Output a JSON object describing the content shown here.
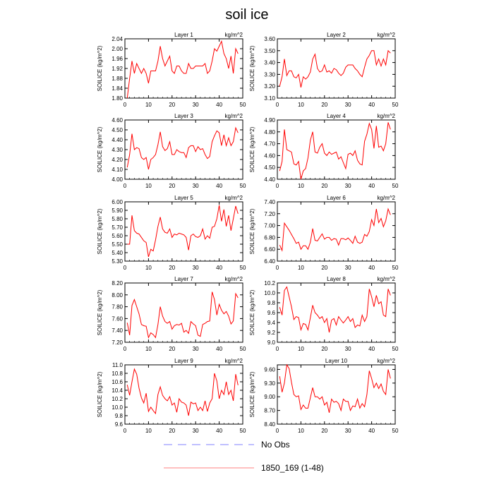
{
  "title": "soil ice",
  "legend": [
    {
      "label": "No Obs",
      "color": "#8080ff",
      "dash": true
    },
    {
      "label": "1850_169 (1-48)",
      "color": "#ff8080",
      "dash": false
    }
  ],
  "chart_data": [
    {
      "type": "line",
      "title": "Layer 1",
      "unit": "kg/m^2",
      "ylabel": "SOILICE  (kg/m^2)",
      "xlim": [
        0,
        50
      ],
      "ylim": [
        1.8,
        2.04
      ],
      "xticks": [
        0,
        10,
        20,
        30,
        40,
        50
      ],
      "yticks": [
        "1.80",
        "1.84",
        "1.88",
        "1.92",
        "1.96",
        "2.00",
        "2.04"
      ],
      "series": [
        {
          "color": "#ff0000",
          "values": [
            1.8,
            1.88,
            1.95,
            1.9,
            1.94,
            1.92,
            1.9,
            1.92,
            1.9,
            1.86,
            1.91,
            1.91,
            1.91,
            1.95,
            2.01,
            1.96,
            1.93,
            1.95,
            1.97,
            1.91,
            1.9,
            1.93,
            1.93,
            1.91,
            1.9,
            1.9,
            1.94,
            1.92,
            1.92,
            1.93,
            1.93,
            1.93,
            1.93,
            1.94,
            1.9,
            1.91,
            1.95,
            2.0,
            1.99,
            2.01,
            2.03,
            1.98,
            1.96,
            1.92,
            1.97,
            1.9,
            2.0,
            1.98
          ]
        }
      ]
    },
    {
      "type": "line",
      "title": "Layer 2",
      "unit": "kg/m^2",
      "ylabel": "SOILICE  (kg/m^2)",
      "xlim": [
        0,
        50
      ],
      "ylim": [
        3.1,
        3.6
      ],
      "xticks": [
        0,
        10,
        20,
        30,
        40,
        50
      ],
      "yticks": [
        "3.10",
        "3.20",
        "3.30",
        "3.40",
        "3.50",
        "3.60"
      ],
      "series": [
        {
          "color": "#ff0000",
          "values": [
            3.2,
            3.28,
            3.43,
            3.29,
            3.33,
            3.33,
            3.28,
            3.27,
            3.3,
            3.19,
            3.28,
            3.26,
            3.28,
            3.32,
            3.43,
            3.47,
            3.35,
            3.32,
            3.33,
            3.38,
            3.32,
            3.33,
            3.31,
            3.35,
            3.34,
            3.31,
            3.29,
            3.31,
            3.36,
            3.38,
            3.38,
            3.38,
            3.35,
            3.33,
            3.3,
            3.28,
            3.36,
            3.43,
            3.46,
            3.5,
            3.5,
            3.38,
            3.43,
            3.37,
            3.43,
            3.38,
            3.5,
            3.48
          ]
        }
      ]
    },
    {
      "type": "line",
      "title": "Layer 3",
      "unit": "kg/m^2",
      "ylabel": "SOILICE  (kg/m^2)",
      "xlim": [
        0,
        50
      ],
      "ylim": [
        4.0,
        4.6
      ],
      "xticks": [
        0,
        10,
        20,
        30,
        40,
        50
      ],
      "yticks": [
        "4.00",
        "4.10",
        "4.20",
        "4.30",
        "4.40",
        "4.50",
        "4.60"
      ],
      "series": [
        {
          "color": "#ff0000",
          "values": [
            4.12,
            4.25,
            4.46,
            4.3,
            4.32,
            4.31,
            4.22,
            4.2,
            4.22,
            4.1,
            4.2,
            4.22,
            4.25,
            4.35,
            4.48,
            4.33,
            4.29,
            4.31,
            4.38,
            4.25,
            4.25,
            4.3,
            4.28,
            4.27,
            4.27,
            4.22,
            4.32,
            4.34,
            4.34,
            4.28,
            4.33,
            4.3,
            4.31,
            4.25,
            4.21,
            4.23,
            4.38,
            4.44,
            4.49,
            4.47,
            4.34,
            4.45,
            4.34,
            4.42,
            4.34,
            4.38,
            4.52,
            4.47
          ]
        }
      ]
    },
    {
      "type": "line",
      "title": "Layer 4",
      "unit": "kg/m^2",
      "ylabel": "SOILICE  (kg/m^2)",
      "xlim": [
        0,
        50
      ],
      "ylim": [
        4.4,
        4.9
      ],
      "xticks": [
        0,
        10,
        20,
        30,
        40,
        50
      ],
      "yticks": [
        "4.40",
        "4.50",
        "4.60",
        "4.70",
        "4.80",
        "4.90"
      ],
      "series": [
        {
          "color": "#ff0000",
          "values": [
            4.47,
            4.55,
            4.82,
            4.65,
            4.64,
            4.63,
            4.53,
            4.52,
            4.55,
            4.4,
            4.47,
            4.49,
            4.58,
            4.73,
            4.8,
            4.63,
            4.62,
            4.67,
            4.7,
            4.62,
            4.6,
            4.63,
            4.61,
            4.62,
            4.63,
            4.57,
            4.59,
            4.54,
            4.49,
            4.61,
            4.62,
            4.6,
            4.64,
            4.56,
            4.53,
            4.52,
            4.72,
            4.78,
            4.87,
            4.82,
            4.66,
            4.85,
            4.67,
            4.68,
            4.64,
            4.7,
            4.88,
            4.82
          ]
        }
      ]
    },
    {
      "type": "line",
      "title": "Layer 5",
      "unit": "kg/m^2",
      "ylabel": "SOILICE  (kg/m^2)",
      "xlim": [
        0,
        50
      ],
      "ylim": [
        5.3,
        6.0
      ],
      "xticks": [
        0,
        10,
        20,
        30,
        40,
        50
      ],
      "yticks": [
        "5.30",
        "5.40",
        "5.50",
        "5.60",
        "5.70",
        "5.80",
        "5.90",
        "6.00"
      ],
      "series": [
        {
          "color": "#ff0000",
          "values": [
            5.5,
            5.5,
            5.84,
            5.66,
            5.63,
            5.62,
            5.58,
            5.54,
            5.52,
            5.35,
            5.44,
            5.42,
            5.55,
            5.71,
            5.82,
            5.68,
            5.64,
            5.63,
            5.68,
            5.58,
            5.62,
            5.61,
            5.63,
            5.62,
            5.61,
            5.58,
            5.43,
            5.6,
            5.62,
            5.59,
            5.58,
            5.6,
            5.68,
            5.56,
            5.6,
            5.57,
            5.7,
            5.71,
            5.8,
            5.96,
            5.77,
            5.91,
            5.71,
            5.84,
            5.66,
            5.8,
            5.95,
            5.86
          ]
        }
      ]
    },
    {
      "type": "line",
      "title": "Layer 6",
      "unit": "kg/m^2",
      "ylabel": "SOILICE  (kg/m^2)",
      "xlim": [
        0,
        50
      ],
      "ylim": [
        6.4,
        7.4
      ],
      "xticks": [
        0,
        10,
        20,
        30,
        40,
        50
      ],
      "yticks": [
        "6.40",
        "6.60",
        "6.80",
        "7.00",
        "7.20",
        "7.40"
      ],
      "series": [
        {
          "color": "#ff0000",
          "values": [
            6.67,
            6.58,
            7.04,
            6.98,
            6.92,
            6.85,
            6.78,
            6.7,
            6.72,
            6.6,
            6.66,
            6.66,
            6.6,
            6.72,
            6.95,
            6.75,
            6.74,
            6.8,
            6.86,
            6.77,
            6.8,
            6.8,
            6.75,
            6.78,
            6.77,
            6.67,
            6.78,
            6.78,
            6.76,
            6.79,
            6.75,
            6.7,
            6.82,
            6.72,
            6.7,
            6.72,
            6.85,
            6.82,
            6.9,
            7.1,
            7.0,
            7.28,
            7.05,
            7.12,
            6.98,
            7.08,
            7.28,
            7.18
          ]
        }
      ]
    },
    {
      "type": "line",
      "title": "Layer 7",
      "unit": "kg/m^2",
      "ylabel": "SOILICE  (kg/m^2)",
      "xlim": [
        0,
        50
      ],
      "ylim": [
        7.2,
        8.2
      ],
      "xticks": [
        0,
        10,
        20,
        30,
        40,
        50
      ],
      "yticks": [
        "7.20",
        "7.40",
        "7.60",
        "7.80",
        "8.00",
        "8.20"
      ],
      "series": [
        {
          "color": "#ff0000",
          "values": [
            7.53,
            7.32,
            7.82,
            7.92,
            7.8,
            7.68,
            7.5,
            7.48,
            7.47,
            7.28,
            7.36,
            7.33,
            7.28,
            7.5,
            7.8,
            7.64,
            7.55,
            7.52,
            7.55,
            7.42,
            7.48,
            7.5,
            7.49,
            7.52,
            7.37,
            7.4,
            7.35,
            7.55,
            7.51,
            7.48,
            7.32,
            7.3,
            7.5,
            7.52,
            7.55,
            7.56,
            8.05,
            7.92,
            7.66,
            7.84,
            7.74,
            7.68,
            7.72,
            7.64,
            7.51,
            7.56,
            8.02,
            7.95
          ]
        }
      ]
    },
    {
      "type": "line",
      "title": "Layer 8",
      "unit": "kg/m^2",
      "ylabel": "SOILICE  (kg/m^2)",
      "xlim": [
        0,
        50
      ],
      "ylim": [
        9.0,
        10.2
      ],
      "xticks": [
        0,
        10,
        20,
        30,
        40,
        50
      ],
      "yticks": [
        "9.0",
        "9.2",
        "9.4",
        "9.6",
        "9.8",
        "10.0",
        "10.2"
      ],
      "series": [
        {
          "color": "#ff0000",
          "values": [
            9.71,
            9.55,
            10.05,
            10.12,
            9.92,
            9.72,
            9.46,
            9.52,
            9.5,
            9.25,
            9.38,
            9.36,
            9.25,
            9.5,
            9.75,
            9.6,
            9.55,
            9.48,
            9.52,
            9.4,
            9.48,
            9.2,
            9.45,
            9.48,
            9.35,
            9.52,
            9.45,
            9.39,
            9.45,
            9.52,
            9.42,
            9.48,
            9.3,
            9.35,
            9.33,
            9.55,
            9.42,
            9.52,
            10.08,
            9.92,
            9.72,
            9.95,
            9.78,
            9.82,
            9.55,
            9.52,
            10.08,
            9.95
          ]
        }
      ]
    },
    {
      "type": "line",
      "title": "Layer 9",
      "unit": "kg/m^2",
      "ylabel": "SOILICE  (kg/m^2)",
      "xlim": [
        0,
        50
      ],
      "ylim": [
        9.6,
        11.0
      ],
      "xticks": [
        0,
        10,
        20,
        30,
        40,
        50
      ],
      "yticks": [
        "9.6",
        "9.8",
        "10.0",
        "10.2",
        "10.4",
        "10.6",
        "10.8",
        "11.0"
      ],
      "series": [
        {
          "color": "#ff0000",
          "values": [
            10.53,
            10.28,
            10.6,
            10.9,
            10.78,
            10.45,
            10.22,
            10.1,
            10.33,
            9.9,
            10.0,
            9.92,
            9.85,
            10.3,
            10.48,
            10.28,
            10.2,
            10.15,
            10.25,
            10.05,
            10.1,
            9.88,
            10.2,
            10.12,
            10.1,
            10.05,
            9.8,
            10.12,
            10.08,
            10.1,
            9.92,
            10.0,
            9.92,
            10.15,
            9.9,
            10.1,
            10.2,
            10.8,
            10.62,
            10.2,
            10.4,
            10.3,
            10.6,
            10.3,
            10.4,
            10.15,
            10.78,
            10.52
          ]
        }
      ]
    },
    {
      "type": "line",
      "title": "Layer 10",
      "unit": "kg/m^2",
      "ylabel": "SOILICE  (kg/m^2)",
      "xlim": [
        0,
        50
      ],
      "ylim": [
        8.4,
        9.7
      ],
      "xticks": [
        0,
        10,
        20,
        30,
        40,
        50
      ],
      "yticks": [
        "8.40",
        "8.70",
        "9.00",
        "9.30",
        "9.60"
      ],
      "series": [
        {
          "color": "#ff0000",
          "values": [
            9.45,
            9.1,
            9.3,
            9.7,
            9.62,
            9.32,
            9.05,
            9.0,
            9.02,
            8.72,
            8.82,
            8.75,
            8.75,
            8.98,
            9.2,
            9.0,
            9.0,
            8.95,
            9.0,
            8.82,
            8.88,
            8.65,
            8.95,
            8.88,
            8.9,
            8.85,
            8.7,
            8.95,
            8.9,
            8.9,
            8.7,
            8.8,
            8.78,
            8.95,
            8.75,
            8.85,
            8.78,
            9.05,
            9.57,
            9.4,
            9.2,
            9.3,
            9.18,
            9.28,
            9.12,
            9.05,
            9.6,
            9.4
          ]
        }
      ]
    }
  ]
}
